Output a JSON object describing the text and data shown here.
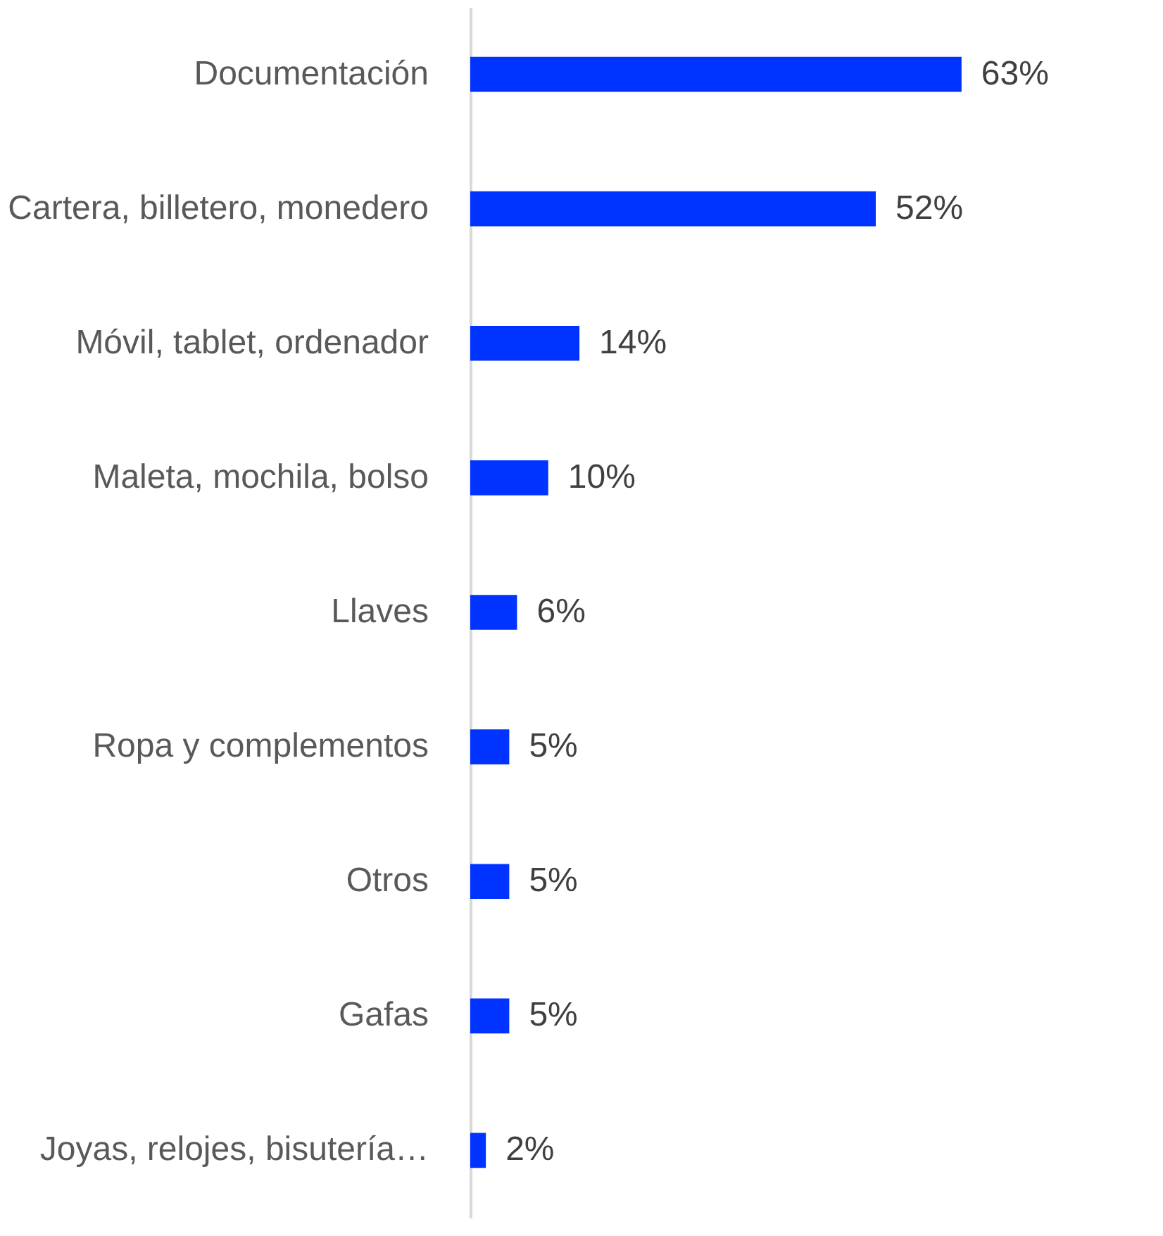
{
  "chart_data": {
    "type": "bar",
    "orientation": "horizontal",
    "categories": [
      "Documentación",
      "Cartera, billetero, monedero",
      "Móvil, tablet, ordenador",
      "Maleta, mochila, bolso",
      "Llaves",
      "Ropa y complementos",
      "Otros",
      "Gafas",
      "Joyas, relojes, bisutería…"
    ],
    "values": [
      63,
      52,
      14,
      10,
      6,
      5,
      5,
      5,
      2
    ],
    "value_labels": [
      "63%",
      "52%",
      "14%",
      "10%",
      "6%",
      "5%",
      "5%",
      "5%",
      "2%"
    ],
    "color": "#0033ff"
  }
}
